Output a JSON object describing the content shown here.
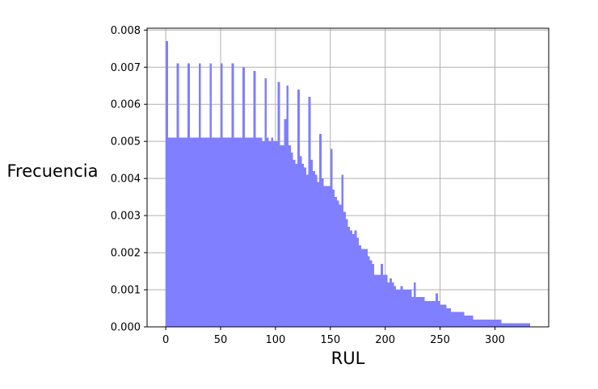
{
  "chart_data": {
    "type": "bar",
    "title": "",
    "xlabel": "RUL",
    "ylabel": "Frecuencia",
    "xlim": [
      -17,
      349
    ],
    "ylim": [
      0,
      0.00805
    ],
    "bin_width": 2,
    "x_ticks": [
      0,
      50,
      100,
      150,
      200,
      250,
      300
    ],
    "y_ticks": [
      0.0,
      0.001,
      0.002,
      0.003,
      0.004,
      0.005,
      0.006,
      0.007,
      0.008
    ],
    "y_tick_labels": [
      "0.000",
      "0.001",
      "0.002",
      "0.003",
      "0.004",
      "0.005",
      "0.006",
      "0.007",
      "0.008"
    ],
    "grid": true,
    "bar_color": "#7f7fff",
    "bins_start": [
      0,
      2,
      4,
      6,
      8,
      10,
      12,
      14,
      16,
      18,
      20,
      22,
      24,
      26,
      28,
      30,
      32,
      34,
      36,
      38,
      40,
      42,
      44,
      46,
      48,
      50,
      52,
      54,
      56,
      58,
      60,
      62,
      64,
      66,
      68,
      70,
      72,
      74,
      76,
      78,
      80,
      82,
      84,
      86,
      88,
      90,
      92,
      94,
      96,
      98,
      100,
      102,
      104,
      106,
      108,
      110,
      112,
      114,
      116,
      118,
      120,
      122,
      124,
      126,
      128,
      130,
      132,
      134,
      136,
      138,
      140,
      142,
      144,
      146,
      148,
      150,
      152,
      154,
      156,
      158,
      160,
      162,
      164,
      166,
      168,
      170,
      172,
      174,
      176,
      178,
      180,
      182,
      184,
      186,
      188,
      190,
      192,
      194,
      196,
      198,
      200,
      202,
      204,
      206,
      208,
      210,
      212,
      214,
      216,
      218,
      220,
      222,
      224,
      226,
      228,
      230,
      232,
      234,
      236,
      238,
      240,
      242,
      244,
      246,
      248,
      250,
      252,
      254,
      256,
      258,
      260,
      262,
      264,
      266,
      268,
      270,
      272,
      274,
      276,
      278,
      280,
      282,
      284,
      286,
      288,
      290,
      292,
      294,
      296,
      298,
      300,
      302,
      304,
      306,
      308,
      310,
      312,
      314,
      316,
      318,
      320,
      322,
      324,
      326,
      328,
      330
    ],
    "values": [
      0.0077,
      0.0051,
      0.0051,
      0.0051,
      0.0051,
      0.0071,
      0.0051,
      0.0051,
      0.0051,
      0.0051,
      0.0071,
      0.0051,
      0.0051,
      0.0051,
      0.0051,
      0.0071,
      0.0051,
      0.0051,
      0.0051,
      0.0051,
      0.0071,
      0.0051,
      0.0051,
      0.0051,
      0.0051,
      0.0071,
      0.0051,
      0.0051,
      0.0051,
      0.0051,
      0.0071,
      0.0051,
      0.0051,
      0.0051,
      0.0051,
      0.007,
      0.0051,
      0.0051,
      0.0051,
      0.0051,
      0.0069,
      0.0051,
      0.0051,
      0.0051,
      0.005,
      0.0067,
      0.0051,
      0.005,
      0.0051,
      0.005,
      0.005,
      0.0066,
      0.0049,
      0.0049,
      0.0056,
      0.0065,
      0.0049,
      0.0047,
      0.0045,
      0.0044,
      0.0064,
      0.0046,
      0.0044,
      0.0043,
      0.0041,
      0.0062,
      0.0045,
      0.0042,
      0.0041,
      0.0039,
      0.0052,
      0.004,
      0.0038,
      0.0038,
      0.0038,
      0.0048,
      0.0037,
      0.0035,
      0.0034,
      0.0033,
      0.0041,
      0.0031,
      0.0029,
      0.0027,
      0.0026,
      0.0025,
      0.0026,
      0.0024,
      0.0022,
      0.0021,
      0.0021,
      0.0021,
      0.0019,
      0.0018,
      0.0017,
      0.0014,
      0.0014,
      0.0014,
      0.0017,
      0.0014,
      0.0014,
      0.0012,
      0.0013,
      0.0012,
      0.0011,
      0.001,
      0.001,
      0.0011,
      0.001,
      0.001,
      0.001,
      0.001,
      0.0008,
      0.0012,
      0.0008,
      0.0008,
      0.0008,
      0.0008,
      0.0007,
      0.0007,
      0.0007,
      0.0007,
      0.0007,
      0.0009,
      0.0007,
      0.0006,
      0.0006,
      0.0006,
      0.0005,
      0.0005,
      0.0004,
      0.0004,
      0.0004,
      0.0004,
      0.0004,
      0.0004,
      0.0003,
      0.0003,
      0.0003,
      0.0003,
      0.0002,
      0.0002,
      0.0002,
      0.0002,
      0.0002,
      0.0002,
      0.0002,
      0.0002,
      0.0002,
      0.0002,
      0.0002,
      0.0002,
      0.0002,
      0.0001,
      0.0001,
      0.0001,
      0.0001,
      0.0001,
      0.0001,
      0.0001,
      0.0001,
      0.0001,
      0.0001,
      0.0001,
      0.0001,
      0.0001
    ]
  }
}
